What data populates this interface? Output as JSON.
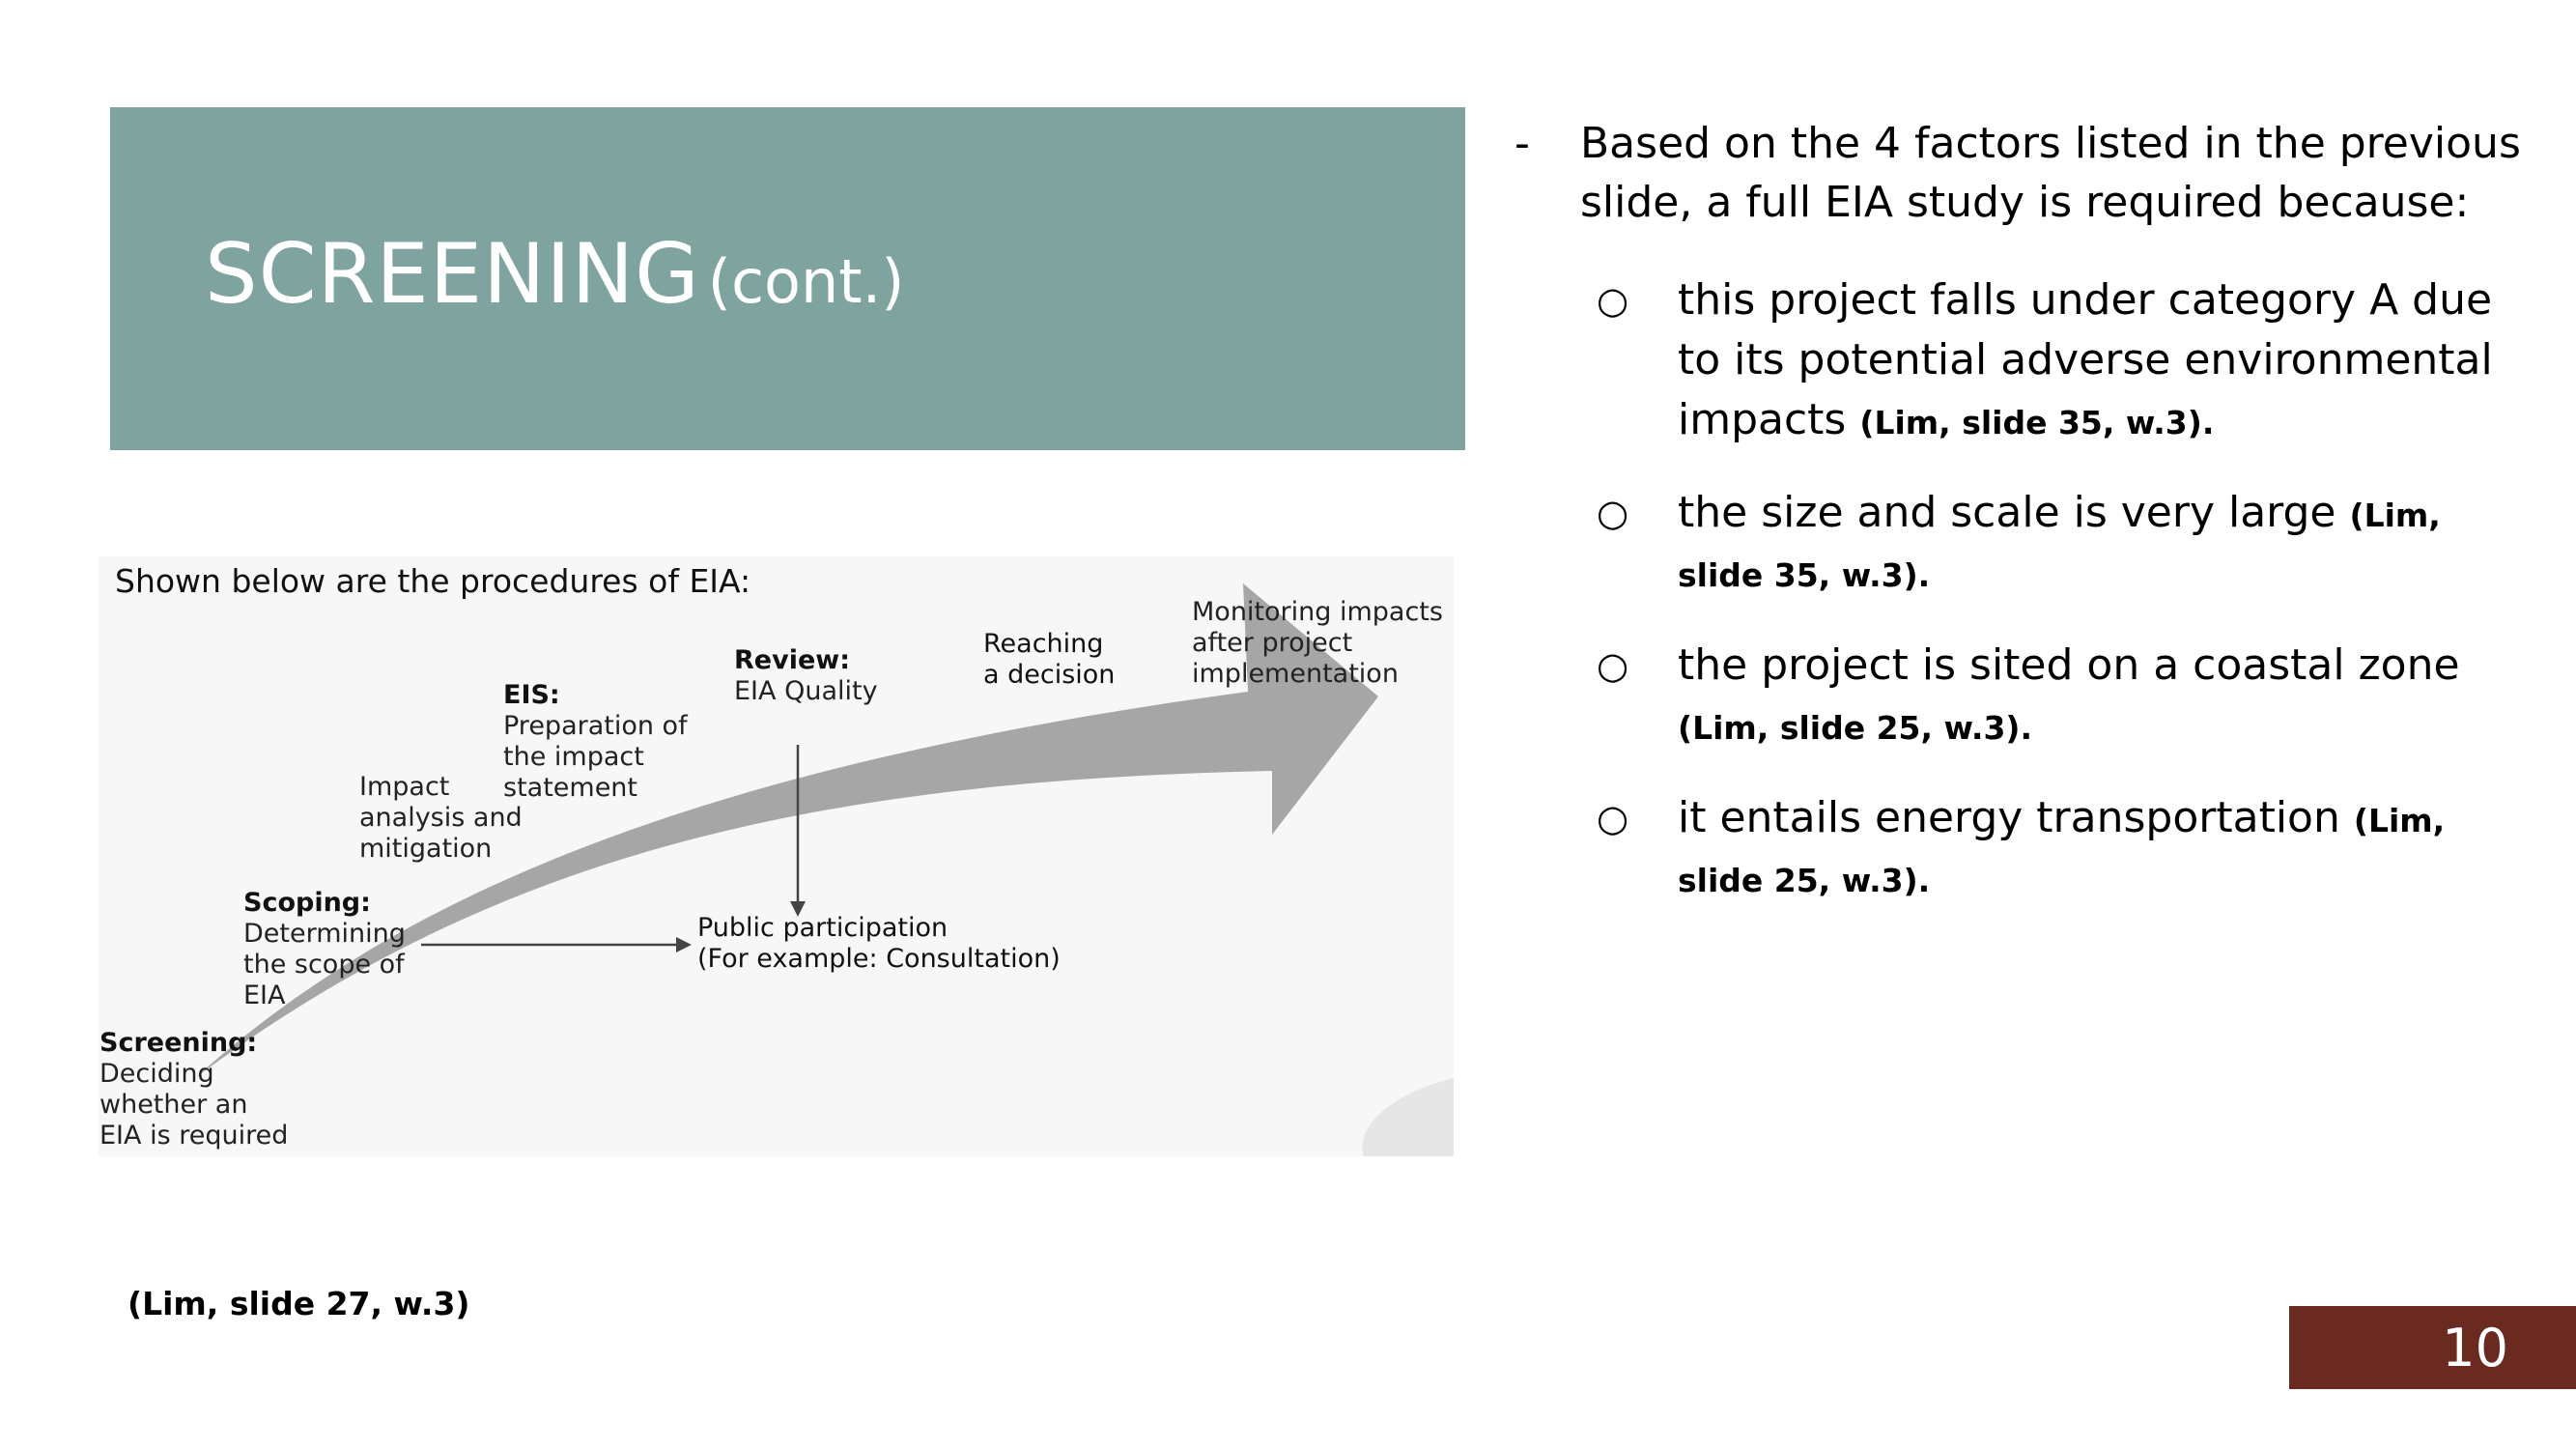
{
  "slide": {
    "title": "SCREENING",
    "title_suffix": "(cont.)",
    "page_number": "10",
    "citation": "(Lim, slide 27, w.3)",
    "colors": {
      "title_band": "#7fa39f",
      "page_band": "#6b2a1f",
      "arrow": "#a6a6a6"
    }
  },
  "diagram": {
    "heading": "Shown below are the procedures of EIA:",
    "steps": {
      "screening": {
        "title": "Screening:",
        "lines": [
          "Deciding",
          "whether an",
          "EIA is required"
        ]
      },
      "scoping": {
        "title": "Scoping:",
        "lines": [
          "Determining",
          "the scope of",
          "EIA"
        ]
      },
      "impact": {
        "lines": [
          "Impact",
          "analysis and",
          "mitigation"
        ]
      },
      "eis": {
        "title": "EIS:",
        "lines": [
          "Preparation of",
          "the impact",
          "statement"
        ]
      },
      "review": {
        "title": "Review:",
        "lines": [
          "EIA Quality"
        ]
      },
      "decision": {
        "lines": [
          "Reaching",
          "a decision"
        ]
      },
      "monitoring": {
        "lines": [
          "Monitoring impacts",
          "after project",
          "implementation"
        ]
      },
      "public": {
        "lines": [
          "Public participation",
          "(For example: Consultation)"
        ]
      }
    }
  },
  "bullets": {
    "intro": "Based on the 4 factors listed in the previous slide, a full EIA study is required because:",
    "items": [
      {
        "text": "this project falls under category A due to its potential adverse environmental impacts",
        "cite": "(Lim, slide 35, w.3)."
      },
      {
        "text": "the size and scale is very large",
        "cite": "(Lim, slide 35, w.3)."
      },
      {
        "text": "the project is sited on a coastal zone",
        "cite": "(Lim, slide 25, w.3)."
      },
      {
        "text": "it entails energy transportation",
        "cite": "(Lim, slide 25, w.3)."
      }
    ]
  }
}
